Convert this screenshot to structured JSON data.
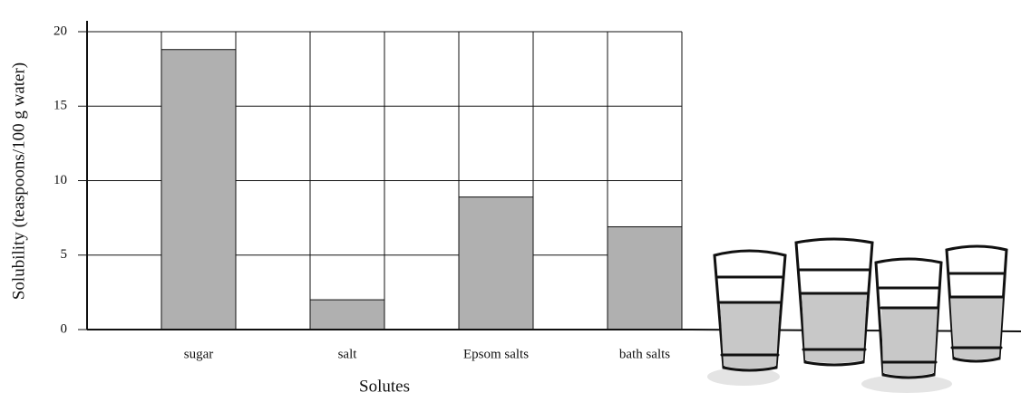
{
  "chart_data": {
    "type": "bar",
    "y_label": "Solubility (teaspoons/100 g water)",
    "x_label": "Solutes",
    "categories": [
      "sugar",
      "salt",
      "Epsom salts",
      "bath salts"
    ],
    "values": [
      18.8,
      2,
      8.9,
      6.9
    ],
    "color": "#b0b0b0",
    "ylim": [
      0,
      20
    ],
    "yticks": [
      0,
      5,
      10,
      15,
      20
    ],
    "grid": true
  }
}
